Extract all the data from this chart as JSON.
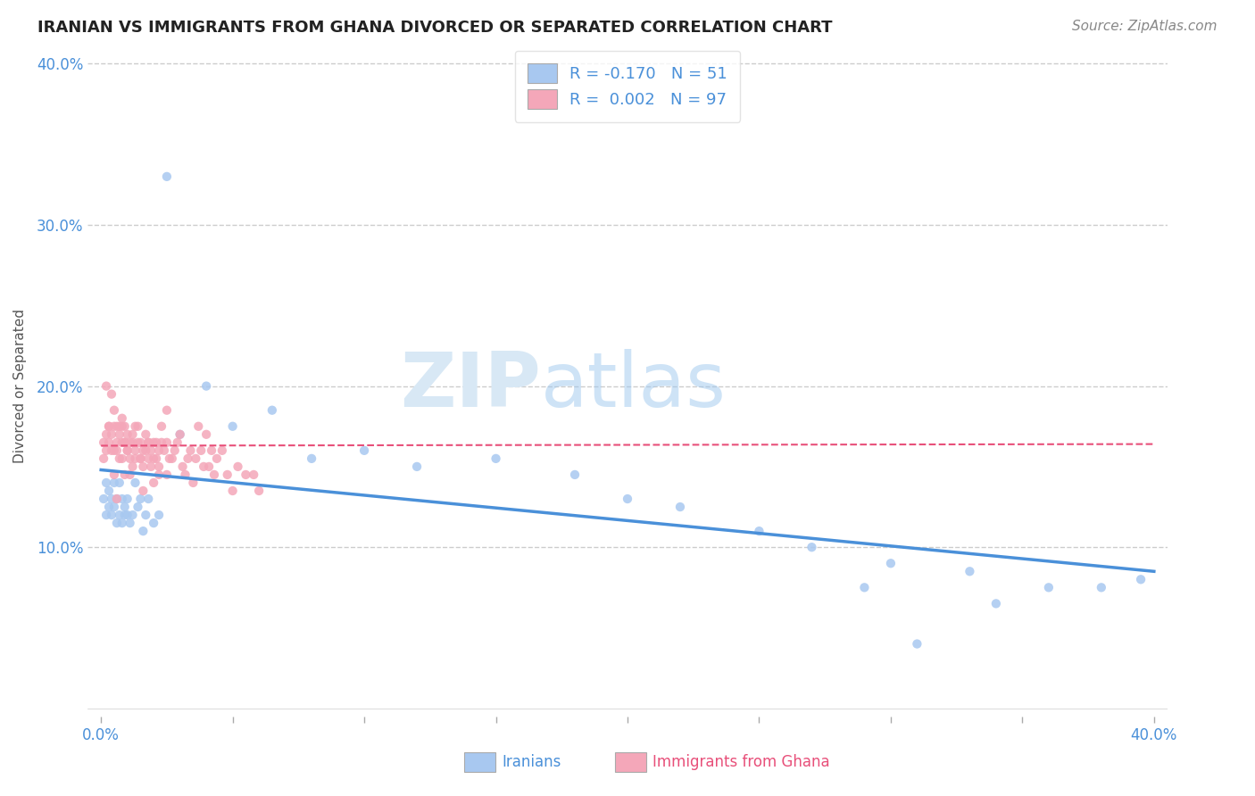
{
  "title": "IRANIAN VS IMMIGRANTS FROM GHANA DIVORCED OR SEPARATED CORRELATION CHART",
  "source": "Source: ZipAtlas.com",
  "ylabel": "Divorced or Separated",
  "xlim": [
    0.0,
    0.4
  ],
  "ylim": [
    0.0,
    0.4
  ],
  "xticks": [
    0.0,
    0.05,
    0.1,
    0.15,
    0.2,
    0.25,
    0.3,
    0.35,
    0.4
  ],
  "yticks": [
    0.0,
    0.1,
    0.2,
    0.3,
    0.4
  ],
  "xticklabels": [
    "0.0%",
    "",
    "",
    "",
    "",
    "",
    "",
    "",
    "40.0%"
  ],
  "yticklabels": [
    "",
    "10.0%",
    "20.0%",
    "30.0%",
    "40.0%"
  ],
  "blue_color": "#4a90d9",
  "pink_color": "#e8507a",
  "blue_scatter_color": "#a8c8f0",
  "pink_scatter_color": "#f4a7b9",
  "background_color": "#ffffff",
  "title_color": "#222222",
  "axis_label_color": "#555555",
  "tick_color": "#4a90d9",
  "grid_color": "#cccccc",
  "title_fontsize": 13,
  "source_fontsize": 11,
  "iranians_x": [
    0.001,
    0.002,
    0.002,
    0.003,
    0.003,
    0.004,
    0.004,
    0.005,
    0.005,
    0.006,
    0.006,
    0.007,
    0.007,
    0.008,
    0.008,
    0.009,
    0.009,
    0.01,
    0.01,
    0.011,
    0.012,
    0.013,
    0.014,
    0.015,
    0.016,
    0.017,
    0.018,
    0.02,
    0.022,
    0.025,
    0.03,
    0.04,
    0.05,
    0.065,
    0.08,
    0.1,
    0.12,
    0.15,
    0.18,
    0.2,
    0.22,
    0.25,
    0.27,
    0.3,
    0.33,
    0.36,
    0.38,
    0.395,
    0.31,
    0.34,
    0.29
  ],
  "iranians_y": [
    0.13,
    0.12,
    0.14,
    0.135,
    0.125,
    0.12,
    0.13,
    0.14,
    0.125,
    0.13,
    0.115,
    0.12,
    0.14,
    0.115,
    0.13,
    0.12,
    0.125,
    0.13,
    0.12,
    0.115,
    0.12,
    0.14,
    0.125,
    0.13,
    0.11,
    0.12,
    0.13,
    0.115,
    0.12,
    0.33,
    0.17,
    0.2,
    0.175,
    0.185,
    0.155,
    0.16,
    0.15,
    0.155,
    0.145,
    0.13,
    0.125,
    0.11,
    0.1,
    0.09,
    0.085,
    0.075,
    0.075,
    0.08,
    0.04,
    0.065,
    0.075
  ],
  "ghana_x": [
    0.001,
    0.001,
    0.002,
    0.002,
    0.003,
    0.003,
    0.004,
    0.004,
    0.005,
    0.005,
    0.006,
    0.006,
    0.007,
    0.007,
    0.008,
    0.008,
    0.009,
    0.009,
    0.01,
    0.01,
    0.011,
    0.011,
    0.012,
    0.012,
    0.013,
    0.013,
    0.014,
    0.014,
    0.015,
    0.015,
    0.016,
    0.016,
    0.017,
    0.017,
    0.018,
    0.018,
    0.019,
    0.019,
    0.02,
    0.02,
    0.021,
    0.021,
    0.022,
    0.022,
    0.023,
    0.023,
    0.024,
    0.025,
    0.025,
    0.026,
    0.027,
    0.028,
    0.029,
    0.03,
    0.031,
    0.032,
    0.033,
    0.034,
    0.035,
    0.036,
    0.037,
    0.038,
    0.039,
    0.04,
    0.041,
    0.042,
    0.043,
    0.044,
    0.046,
    0.048,
    0.05,
    0.052,
    0.055,
    0.058,
    0.06,
    0.008,
    0.01,
    0.012,
    0.015,
    0.018,
    0.02,
    0.022,
    0.025,
    0.007,
    0.009,
    0.011,
    0.013,
    0.016,
    0.005,
    0.006,
    0.008,
    0.009,
    0.004,
    0.006,
    0.003,
    0.005,
    0.002
  ],
  "ghana_y": [
    0.155,
    0.165,
    0.16,
    0.17,
    0.165,
    0.175,
    0.16,
    0.17,
    0.16,
    0.175,
    0.165,
    0.175,
    0.155,
    0.17,
    0.155,
    0.165,
    0.165,
    0.175,
    0.16,
    0.17,
    0.155,
    0.165,
    0.15,
    0.165,
    0.16,
    0.175,
    0.165,
    0.175,
    0.155,
    0.165,
    0.15,
    0.16,
    0.16,
    0.17,
    0.155,
    0.165,
    0.15,
    0.16,
    0.155,
    0.165,
    0.155,
    0.165,
    0.145,
    0.16,
    0.165,
    0.175,
    0.16,
    0.185,
    0.165,
    0.155,
    0.155,
    0.16,
    0.165,
    0.17,
    0.15,
    0.145,
    0.155,
    0.16,
    0.14,
    0.155,
    0.175,
    0.16,
    0.15,
    0.17,
    0.15,
    0.16,
    0.145,
    0.155,
    0.16,
    0.145,
    0.135,
    0.15,
    0.145,
    0.145,
    0.135,
    0.175,
    0.16,
    0.17,
    0.155,
    0.165,
    0.14,
    0.15,
    0.145,
    0.175,
    0.165,
    0.145,
    0.155,
    0.135,
    0.185,
    0.16,
    0.18,
    0.145,
    0.195,
    0.13,
    0.175,
    0.145,
    0.2
  ],
  "blue_line_x": [
    0.0,
    0.4
  ],
  "blue_line_y": [
    0.148,
    0.085
  ],
  "pink_line_x": [
    0.0,
    0.4
  ],
  "pink_line_y": [
    0.163,
    0.164
  ],
  "legend_items": [
    {
      "label": "R = -0.170   N = 51",
      "color": "#a8c8f0"
    },
    {
      "label": "R =  0.002   N = 97",
      "color": "#f4a7b9"
    }
  ],
  "bottom_legend": [
    {
      "label": "Iranians",
      "color": "#4a90d9",
      "box_color": "#a8c8f0"
    },
    {
      "label": "Immigrants from Ghana",
      "color": "#e8507a",
      "box_color": "#f4a7b9"
    }
  ]
}
